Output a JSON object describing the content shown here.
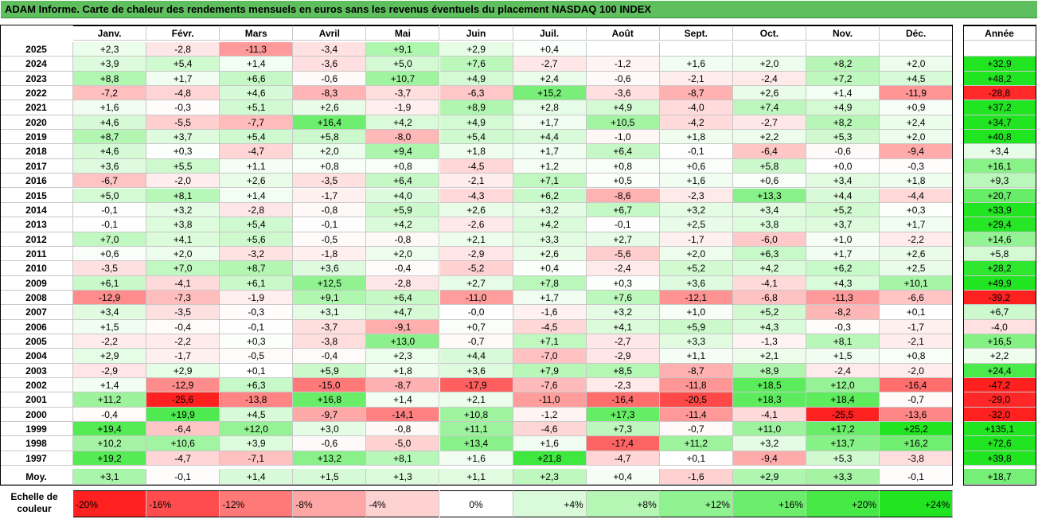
{
  "title": "ADAM Informe. Carte de chaleur des rendements mensuels en euros sans les revenus éventuels du placement NASDAQ 100 INDEX",
  "chart_data": {
    "type": "heatmap",
    "title": "ADAM Informe. Carte de chaleur des rendements mensuels en euros sans les revenus éventuels du placement NASDAQ 100 INDEX",
    "months": [
      "Janv.",
      "Févr.",
      "Mars",
      "Avril",
      "Mai",
      "Juin",
      "Juil.",
      "Août",
      "Sept.",
      "Oct.",
      "Nov.",
      "Déc."
    ],
    "year_header": "Année",
    "rows": [
      {
        "year": "2025",
        "values": [
          "+2,3",
          "-2,8",
          "-11,3",
          "-3,4",
          "+9,1",
          "+2,9",
          "+0,4",
          "",
          "",
          "",
          "",
          ""
        ],
        "annual": ""
      },
      {
        "year": "2024",
        "values": [
          "+3,9",
          "+5,4",
          "+1,4",
          "-3,6",
          "+5,0",
          "+7,6",
          "-2,7",
          "-1,2",
          "+1,6",
          "+2,0",
          "+8,2",
          "+2,0"
        ],
        "annual": "+32,9"
      },
      {
        "year": "2023",
        "values": [
          "+8,8",
          "+1,7",
          "+6,6",
          "-0,6",
          "+10,7",
          "+4,9",
          "+2,4",
          "-0,6",
          "-2,1",
          "-2,4",
          "+7,2",
          "+4,5"
        ],
        "annual": "+48,2"
      },
      {
        "year": "2022",
        "values": [
          "-7,2",
          "-4,8",
          "+4,6",
          "-8,3",
          "-3,7",
          "-6,3",
          "+15,2",
          "-3,6",
          "-8,7",
          "+2,6",
          "+1,4",
          "-11,9"
        ],
        "annual": "-28,8"
      },
      {
        "year": "2021",
        "values": [
          "+1,6",
          "-0,3",
          "+5,1",
          "+2,6",
          "-1,9",
          "+8,9",
          "+2,8",
          "+4,9",
          "-4,0",
          "+7,4",
          "+4,9",
          "+0,9"
        ],
        "annual": "+37,2"
      },
      {
        "year": "2020",
        "values": [
          "+4,6",
          "-5,5",
          "-7,7",
          "+16,4",
          "+4,2",
          "+4,9",
          "+1,7",
          "+10,5",
          "-4,2",
          "-2,7",
          "+8,2",
          "+2,4"
        ],
        "annual": "+34,7"
      },
      {
        "year": "2019",
        "values": [
          "+8,7",
          "+3,7",
          "+5,4",
          "+5,8",
          "-8,0",
          "+5,4",
          "+4,4",
          "-1,0",
          "+1,8",
          "+2,2",
          "+5,3",
          "+2,0"
        ],
        "annual": "+40,8"
      },
      {
        "year": "2018",
        "values": [
          "+4,6",
          "+0,3",
          "-4,7",
          "+2,0",
          "+9,4",
          "+1,8",
          "+1,7",
          "+6,4",
          "-0,1",
          "-6,4",
          "-0,6",
          "-9,4"
        ],
        "annual": "+3,4"
      },
      {
        "year": "2017",
        "values": [
          "+3,6",
          "+5,5",
          "+1,1",
          "+0,8",
          "+0,8",
          "-4,5",
          "+1,2",
          "+0,8",
          "+0,6",
          "+5,8",
          "+0,0",
          "-0,3"
        ],
        "annual": "+16,1"
      },
      {
        "year": "2016",
        "values": [
          "-6,7",
          "-2,0",
          "+2,6",
          "-3,5",
          "+6,4",
          "-2,1",
          "+7,1",
          "+0,5",
          "+1,6",
          "+0,6",
          "+3,4",
          "+1,8"
        ],
        "annual": "+9,3"
      },
      {
        "year": "2015",
        "values": [
          "+5,0",
          "+8,1",
          "+1,4",
          "-1,7",
          "+4,0",
          "-4,3",
          "+6,2",
          "-8,6",
          "-2,3",
          "+13,3",
          "+4,4",
          "-4,4"
        ],
        "annual": "+20,7"
      },
      {
        "year": "2014",
        "values": [
          "-0,1",
          "+3,2",
          "-2,8",
          "-0,8",
          "+5,9",
          "+2,6",
          "+3,2",
          "+6,7",
          "+3,2",
          "+3,4",
          "+5,2",
          "+0,3"
        ],
        "annual": "+33,9"
      },
      {
        "year": "2013",
        "values": [
          "-0,1",
          "+3,8",
          "+5,4",
          "-0,1",
          "+4,2",
          "-2,6",
          "+4,2",
          "-0,1",
          "+2,5",
          "+3,8",
          "+3,7",
          "+1,7"
        ],
        "annual": "+29,4"
      },
      {
        "year": "2012",
        "values": [
          "+7,0",
          "+4,1",
          "+5,6",
          "-0,5",
          "-0,8",
          "+2,1",
          "+3,3",
          "+2,7",
          "-1,7",
          "-6,0",
          "+1,0",
          "-2,2"
        ],
        "annual": "+14,6"
      },
      {
        "year": "2011",
        "values": [
          "+0,6",
          "+2,0",
          "-3,2",
          "-1,8",
          "+2,0",
          "-2,9",
          "+2,6",
          "-5,6",
          "+2,0",
          "+6,3",
          "+1,7",
          "+2,6"
        ],
        "annual": "+5,8"
      },
      {
        "year": "2010",
        "values": [
          "-3,5",
          "+7,0",
          "+8,7",
          "+3,6",
          "-0,4",
          "-5,2",
          "+0,4",
          "-2,4",
          "+5,2",
          "+4,2",
          "+6,2",
          "+2,5"
        ],
        "annual": "+28,2"
      },
      {
        "year": "2009",
        "values": [
          "+6,1",
          "-4,1",
          "+6,1",
          "+12,5",
          "-2,8",
          "+2,7",
          "+7,8",
          "+0,3",
          "+3,6",
          "-4,1",
          "+4,3",
          "+10,1"
        ],
        "annual": "+49,9"
      },
      {
        "year": "2008",
        "values": [
          "-12,9",
          "-7,3",
          "-1,9",
          "+9,1",
          "+6,4",
          "-11,0",
          "+1,7",
          "+7,6",
          "-12,1",
          "-6,8",
          "-11,3",
          "-6,6"
        ],
        "annual": "-39,2"
      },
      {
        "year": "2007",
        "values": [
          "+3,4",
          "-3,5",
          "-0,3",
          "+3,1",
          "+4,7",
          "-0,0",
          "-1,6",
          "+3,2",
          "+1,0",
          "+5,2",
          "-8,2",
          "+0,1"
        ],
        "annual": "+6,7"
      },
      {
        "year": "2006",
        "values": [
          "+1,5",
          "-0,4",
          "-0,1",
          "-3,7",
          "-9,1",
          "+0,7",
          "-4,5",
          "+4,1",
          "+5,9",
          "+4,3",
          "-0,3",
          "-1,7"
        ],
        "annual": "-4,0"
      },
      {
        "year": "2005",
        "values": [
          "-2,2",
          "-2,2",
          "+0,3",
          "-3,8",
          "+13,0",
          "-0,7",
          "+7,1",
          "-2,7",
          "+3,3",
          "-1,3",
          "+8,1",
          "-2,1"
        ],
        "annual": "+16,5"
      },
      {
        "year": "2004",
        "values": [
          "+2,9",
          "-1,7",
          "-0,5",
          "-0,4",
          "+2,3",
          "+4,4",
          "-7,0",
          "-2,9",
          "+1,1",
          "+2,1",
          "+1,5",
          "+0,8"
        ],
        "annual": "+2,2"
      },
      {
        "year": "2003",
        "values": [
          "-2,9",
          "+2,9",
          "+0,1",
          "+5,9",
          "+1,8",
          "+3,6",
          "+7,9",
          "+8,5",
          "-8,7",
          "+8,9",
          "-2,4",
          "-2,0"
        ],
        "annual": "+24,4"
      },
      {
        "year": "2002",
        "values": [
          "+1,4",
          "-12,9",
          "+6,3",
          "-15,0",
          "-8,7",
          "-17,9",
          "-7,6",
          "-2,3",
          "-11,8",
          "+18,5",
          "+12,0",
          "-16,4"
        ],
        "annual": "-47,2"
      },
      {
        "year": "2001",
        "values": [
          "+11,2",
          "-25,6",
          "-13,8",
          "+16,8",
          "+1,4",
          "+2,1",
          "-11,0",
          "-16,4",
          "-20,5",
          "+18,3",
          "+18,4",
          "-0,7"
        ],
        "annual": "-29,0"
      },
      {
        "year": "2000",
        "values": [
          "-0,4",
          "+19,9",
          "+4,5",
          "-9,7",
          "-14,1",
          "+10,8",
          "-1,2",
          "+17,3",
          "-11,4",
          "-4,1",
          "-25,5",
          "-13,6"
        ],
        "annual": "-32,0"
      },
      {
        "year": "1999",
        "values": [
          "+19,4",
          "-6,4",
          "+12,0",
          "+3,0",
          "-0,8",
          "+11,1",
          "-4,6",
          "+7,3",
          "-0,7",
          "+11,0",
          "+17,2",
          "+25,2"
        ],
        "annual": "+135,1"
      },
      {
        "year": "1998",
        "values": [
          "+10,2",
          "+10,6",
          "+3,9",
          "-0,6",
          "-5,0",
          "+13,4",
          "+1,6",
          "-17,4",
          "+11,2",
          "+3,2",
          "+13,7",
          "+16,2"
        ],
        "annual": "+72,6"
      },
      {
        "year": "1997",
        "values": [
          "+19,2",
          "-4,7",
          "-7,1",
          "+13,2",
          "+8,1",
          "+1,6",
          "+21,8",
          "-4,7",
          "+0,1",
          "-9,4",
          "+5,3",
          "-3,8"
        ],
        "annual": "+39,8"
      }
    ],
    "average": {
      "label": "Moy.",
      "values": [
        "+3,1",
        "-0,1",
        "+1,4",
        "+1,5",
        "+1,3",
        "+1,1",
        "+2,3",
        "+0,4",
        "-1,6",
        "+2,9",
        "+3,3",
        "-0,1"
      ],
      "annual": "+18,7"
    },
    "scale": {
      "label_line1": "Echelle de",
      "label_line2": "couleur",
      "stops": [
        "-20%",
        "-16%",
        "-12%",
        "-8%",
        "-4%",
        "0%",
        "+4%",
        "+8%",
        "+12%",
        "+16%",
        "+20%",
        "+24%"
      ]
    },
    "colors": {
      "negative_max": "#ff2020",
      "neutral": "#ffffff",
      "positive_max": "#22e522",
      "title_bg": "#5fbf5f"
    }
  }
}
